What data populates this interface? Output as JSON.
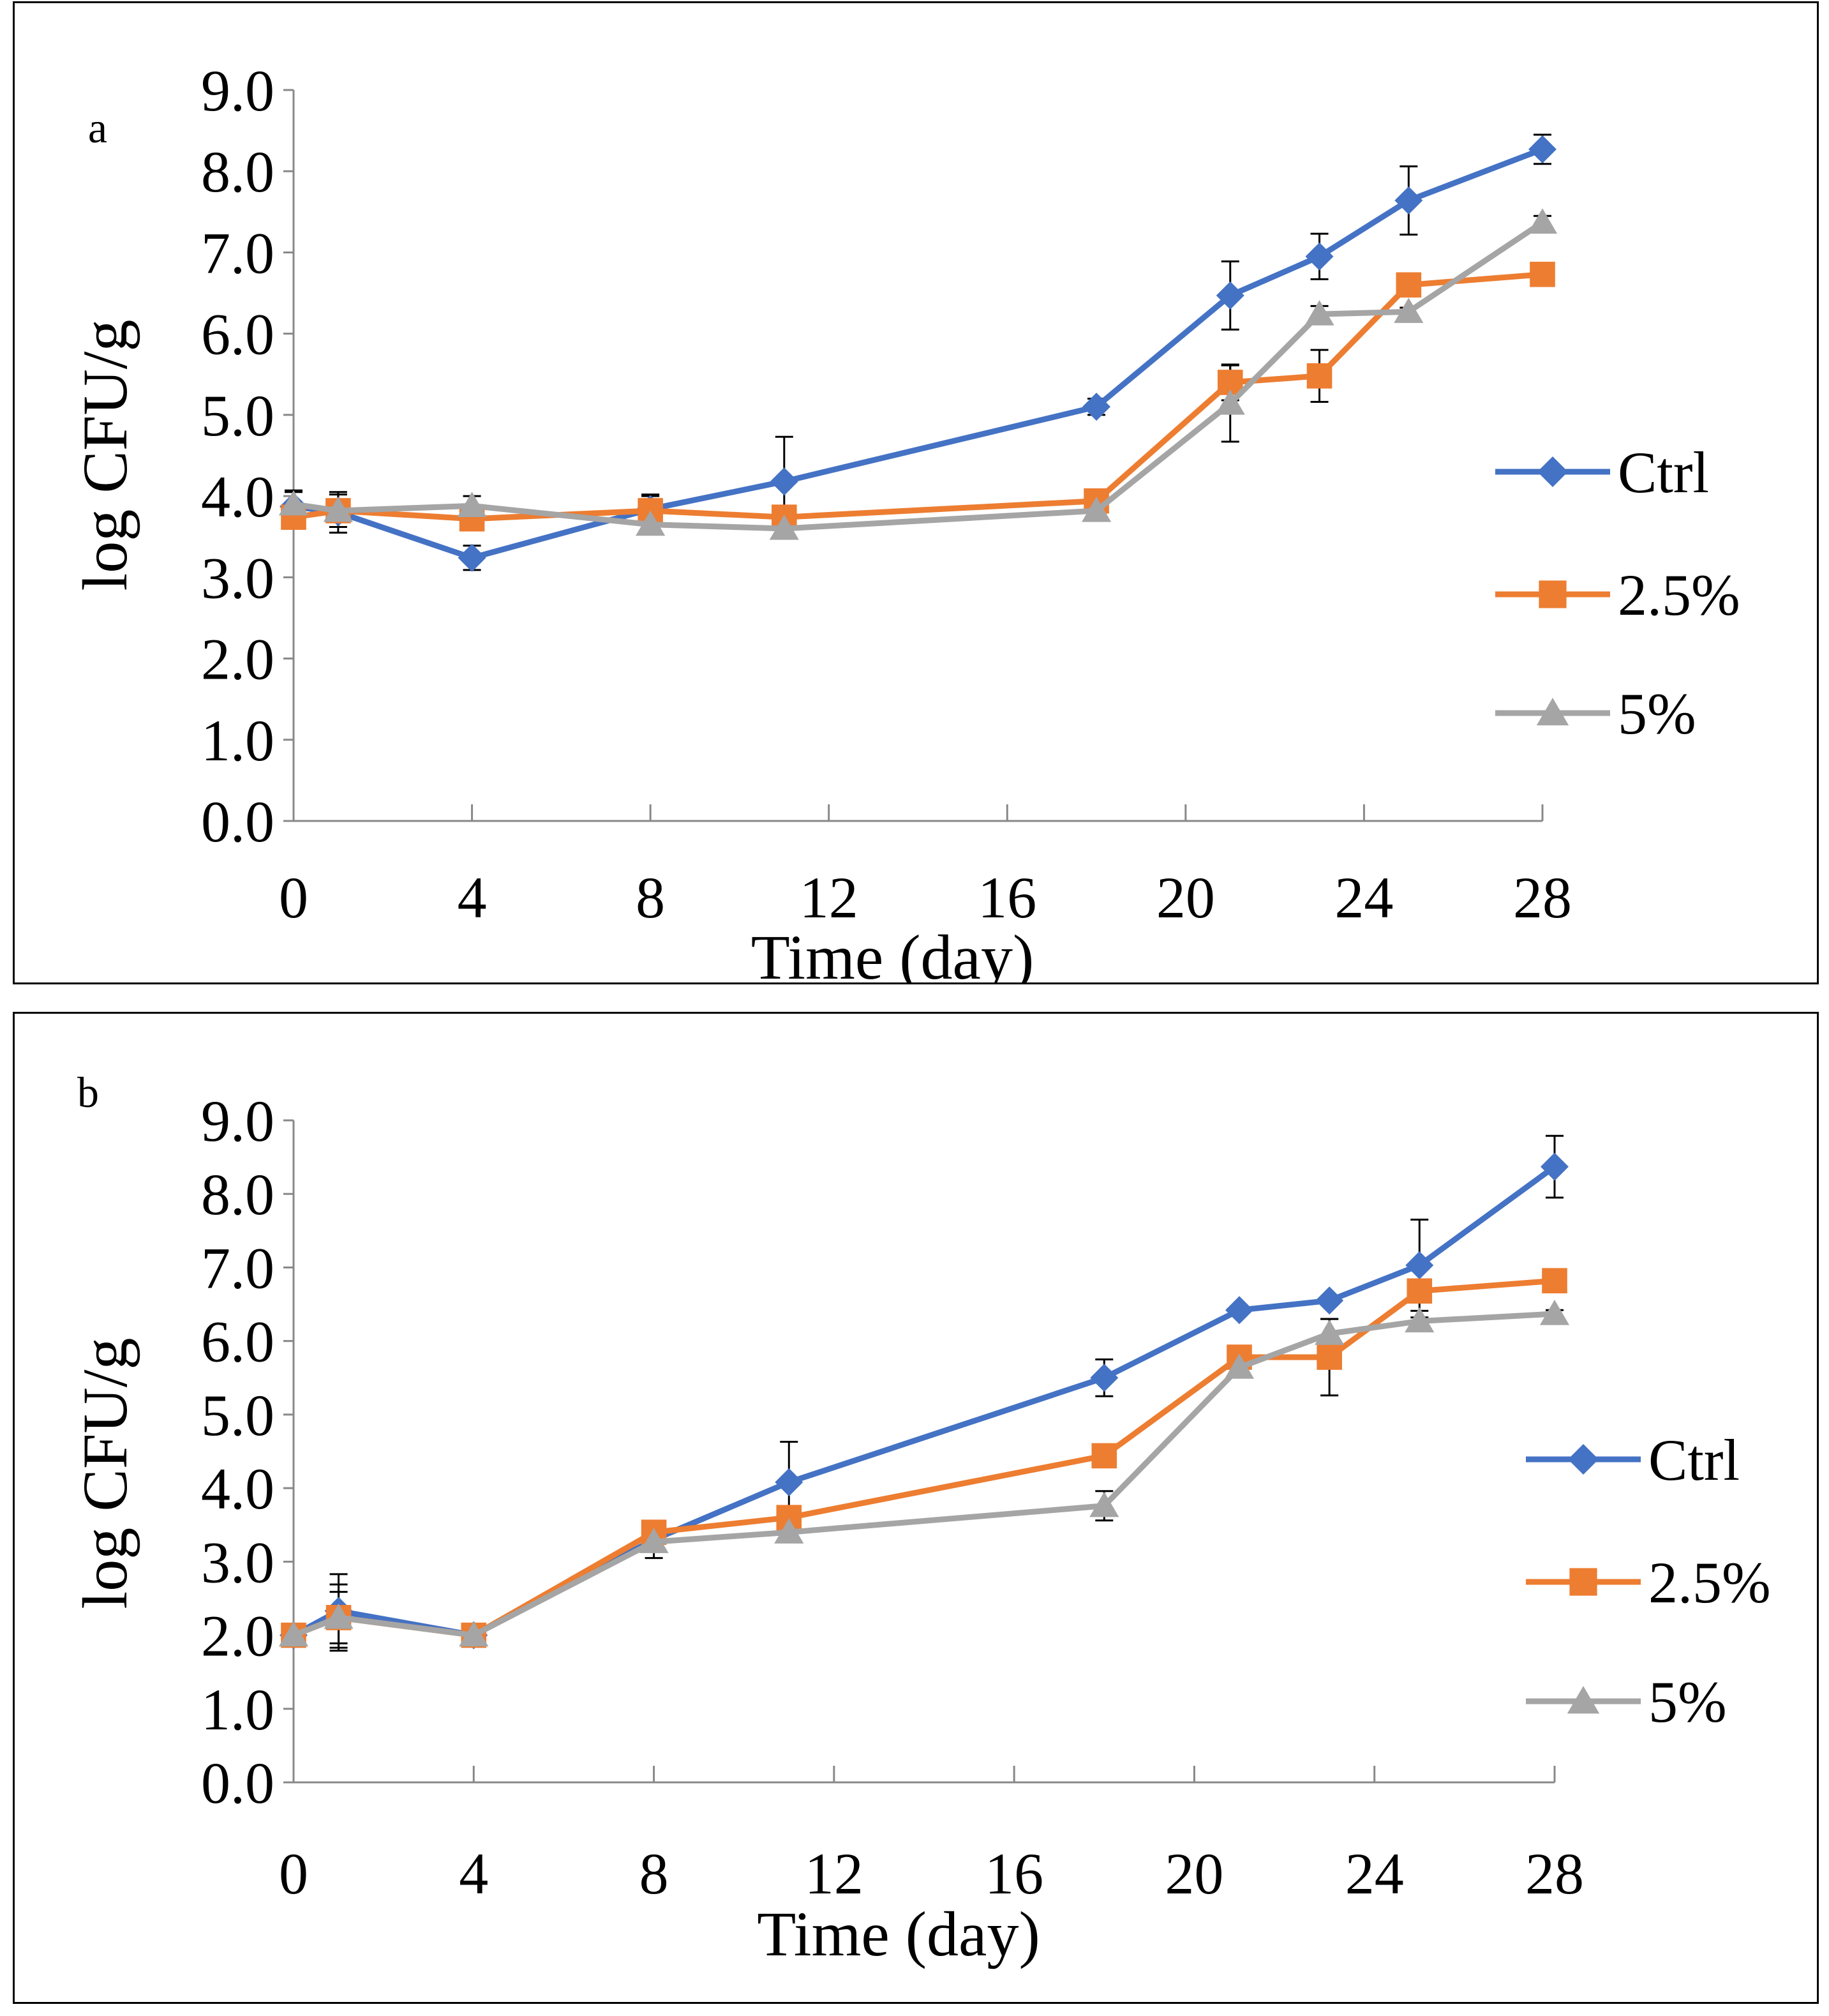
{
  "figure": {
    "colors": {
      "ctrl": "#4472C4",
      "p25": "#ED7D31",
      "p5": "#A5A5A5",
      "axis": "#888888",
      "error_bar": "#000000"
    },
    "marker_icons": {
      "ctrl": "diamond-icon",
      "p25": "square-icon",
      "p5": "triangle-icon"
    }
  },
  "chart_data": [
    {
      "type": "line",
      "panel_label": "a",
      "xlabel": "Time (day)",
      "ylabel": "log CFU/g",
      "xlim": [
        0,
        28
      ],
      "ylim": [
        0,
        9
      ],
      "x_ticks": [
        0,
        4,
        8,
        12,
        16,
        20,
        24,
        28
      ],
      "y_ticks": [
        0,
        1,
        2,
        3,
        4,
        5,
        6,
        7,
        8,
        9
      ],
      "x_tick_labels": [
        "0",
        "4",
        "8",
        "12",
        "16",
        "20",
        "24",
        "28"
      ],
      "y_tick_labels": [
        "0.0",
        "1.0",
        "2.0",
        "3.0",
        "4.0",
        "5.0",
        "6.0",
        "7.0",
        "8.0",
        "9.0"
      ],
      "legend_position": "right",
      "x": [
        0,
        1,
        4,
        8,
        11,
        18,
        21,
        23,
        25,
        28
      ],
      "series": [
        {
          "name": "Ctrl",
          "key": "ctrl",
          "marker": "diamond",
          "values": [
            3.87,
            3.8,
            3.24,
            3.84,
            4.18,
            5.1,
            6.47,
            6.95,
            7.64,
            8.27
          ],
          "errors": [
            0.2,
            0.25,
            0.15,
            0.18,
            0.55,
            0.1,
            0.42,
            0.28,
            0.42,
            0.18
          ]
        },
        {
          "name": "2.5%",
          "key": "p25",
          "marker": "square",
          "values": [
            3.74,
            3.82,
            3.72,
            3.82,
            3.74,
            3.94,
            5.4,
            5.48,
            6.6,
            6.73
          ],
          "errors": [
            0.05,
            0.2,
            0.05,
            0.18,
            0.05,
            0.05,
            0.22,
            0.32,
            0.05,
            0.05
          ]
        },
        {
          "name": "5%",
          "key": "p5",
          "marker": "triangle",
          "values": [
            3.9,
            3.82,
            3.88,
            3.65,
            3.6,
            3.82,
            5.14,
            6.24,
            6.27,
            7.37
          ],
          "errors": [
            0.15,
            0.05,
            0.12,
            0.05,
            0.05,
            0.05,
            0.47,
            0.1,
            0.05,
            0.08
          ]
        }
      ]
    },
    {
      "type": "line",
      "panel_label": "b",
      "xlabel": "Time (day)",
      "ylabel": "log CFU/g",
      "xlim": [
        0,
        28
      ],
      "ylim": [
        0,
        9
      ],
      "x_ticks": [
        0,
        4,
        8,
        12,
        16,
        20,
        24,
        28
      ],
      "y_ticks": [
        0,
        1,
        2,
        3,
        4,
        5,
        6,
        7,
        8,
        9
      ],
      "x_tick_labels": [
        "0",
        "4",
        "8",
        "12",
        "16",
        "20",
        "24",
        "28"
      ],
      "y_tick_labels": [
        "0.0",
        "1.0",
        "2.0",
        "3.0",
        "4.0",
        "5.0",
        "6.0",
        "7.0",
        "8.0",
        "9.0"
      ],
      "legend_position": "right",
      "x": [
        0,
        1,
        4,
        8,
        11,
        18,
        21,
        23,
        25,
        28
      ],
      "series": [
        {
          "name": "Ctrl",
          "key": "ctrl",
          "marker": "diamond",
          "values": [
            2.0,
            2.33,
            2.0,
            3.3,
            4.08,
            5.5,
            6.42,
            6.55,
            7.03,
            8.37
          ],
          "errors": [
            0.05,
            0.5,
            0.05,
            0.25,
            0.55,
            0.25,
            0.05,
            0.05,
            0.62,
            0.42
          ]
        },
        {
          "name": "2.5%",
          "key": "p25",
          "marker": "square",
          "values": [
            2.0,
            2.24,
            2.0,
            3.4,
            3.6,
            4.44,
            5.78,
            5.78,
            6.68,
            6.82
          ],
          "errors": [
            0.05,
            0.35,
            0.05,
            0.05,
            0.05,
            0.05,
            0.05,
            0.52,
            0.05,
            0.05
          ]
        },
        {
          "name": "5%",
          "key": "p5",
          "marker": "triangle",
          "values": [
            2.0,
            2.24,
            2.0,
            3.27,
            3.4,
            3.76,
            5.64,
            6.1,
            6.27,
            6.37
          ],
          "errors": [
            0.05,
            0.45,
            0.05,
            0.05,
            0.05,
            0.2,
            0.05,
            0.2,
            0.05,
            0.05
          ]
        }
      ]
    }
  ]
}
